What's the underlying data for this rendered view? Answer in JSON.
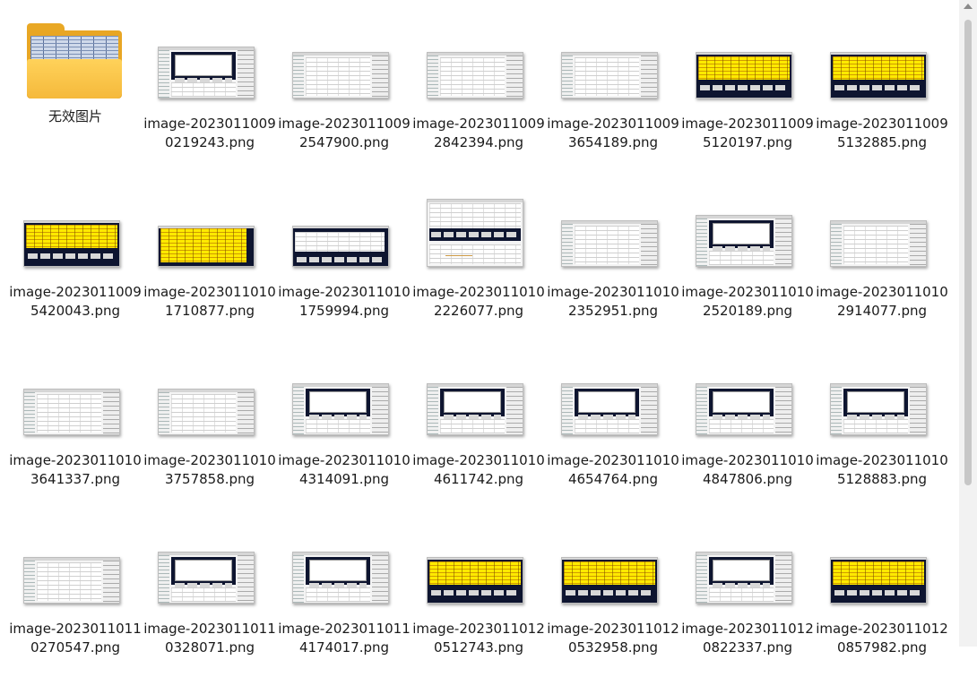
{
  "folder": {
    "name": "无效图片",
    "icon": "folder-icon"
  },
  "files": [
    {
      "name": "image-20230110090219243.png",
      "style": "panel"
    },
    {
      "name": "image-20230110092547900.png",
      "style": "sheet"
    },
    {
      "name": "image-20230110092842394.png",
      "style": "sheet"
    },
    {
      "name": "image-20230110093654189.png",
      "style": "sheet"
    },
    {
      "name": "image-20230110095120197.png",
      "style": "yellow"
    },
    {
      "name": "image-20230110095132885.png",
      "style": "yellow"
    },
    {
      "name": "image-20230110095420043.png",
      "style": "yellow"
    },
    {
      "name": "image-20230110101710877.png",
      "style": "yellow-full"
    },
    {
      "name": "image-20230110101759994.png",
      "style": "whitepanel"
    },
    {
      "name": "image-20230110102226077.png",
      "style": "tall"
    },
    {
      "name": "image-20230110102352951.png",
      "style": "sheet"
    },
    {
      "name": "image-20230110102520189.png",
      "style": "panel"
    },
    {
      "name": "image-20230110102914077.png",
      "style": "sheet"
    },
    {
      "name": "image-20230110103641337.png",
      "style": "sheet"
    },
    {
      "name": "image-20230110103757858.png",
      "style": "sheet"
    },
    {
      "name": "image-20230110104314091.png",
      "style": "panel"
    },
    {
      "name": "image-20230110104611742.png",
      "style": "panel"
    },
    {
      "name": "image-20230110104654764.png",
      "style": "panel"
    },
    {
      "name": "image-20230110104847806.png",
      "style": "panel"
    },
    {
      "name": "image-20230110105128883.png",
      "style": "panel"
    },
    {
      "name": "image-20230110110270547.png",
      "style": "sheet"
    },
    {
      "name": "image-20230110110328071.png",
      "style": "panel"
    },
    {
      "name": "image-20230110114174017.png",
      "style": "panel"
    },
    {
      "name": "image-20230110120512743.png",
      "style": "yellow"
    },
    {
      "name": "image-20230110120532958.png",
      "style": "yellow"
    },
    {
      "name": "image-20230110120822337.png",
      "style": "panel"
    },
    {
      "name": "image-20230110120857982.png",
      "style": "yellow"
    }
  ],
  "scrollbar": {
    "icon": "scroll-up-icon"
  }
}
